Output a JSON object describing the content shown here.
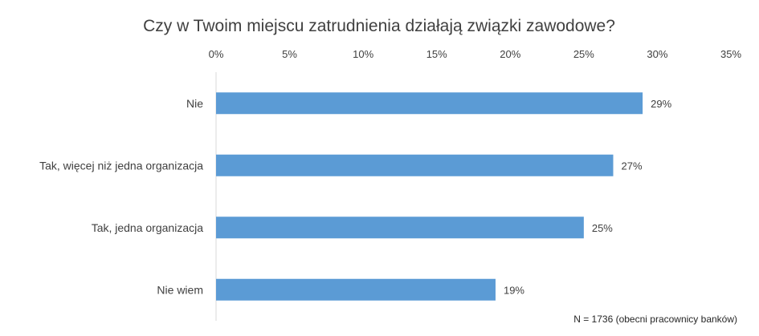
{
  "chart_data": {
    "type": "bar",
    "orientation": "horizontal",
    "title": "Czy w Twoim miejscu zatrudnienia działają związki zawodowe?",
    "categories": [
      "Nie",
      "Tak, więcej niż jedna organizacja",
      "Tak, jedna organizacja",
      "Nie wiem"
    ],
    "values": [
      29,
      27,
      25,
      19
    ],
    "value_labels": [
      "29%",
      "27%",
      "25%",
      "19%"
    ],
    "xlim": [
      0,
      35
    ],
    "x_ticks": [
      0,
      5,
      10,
      15,
      20,
      25,
      30,
      35
    ],
    "x_tick_labels": [
      "0%",
      "5%",
      "10%",
      "15%",
      "20%",
      "25%",
      "30%",
      "35%"
    ],
    "axis_position": "top",
    "grid": false,
    "legend": "none",
    "bar_color": "#5b9bd5",
    "note": "N = 1736 (obecni pracownicy banków)"
  }
}
